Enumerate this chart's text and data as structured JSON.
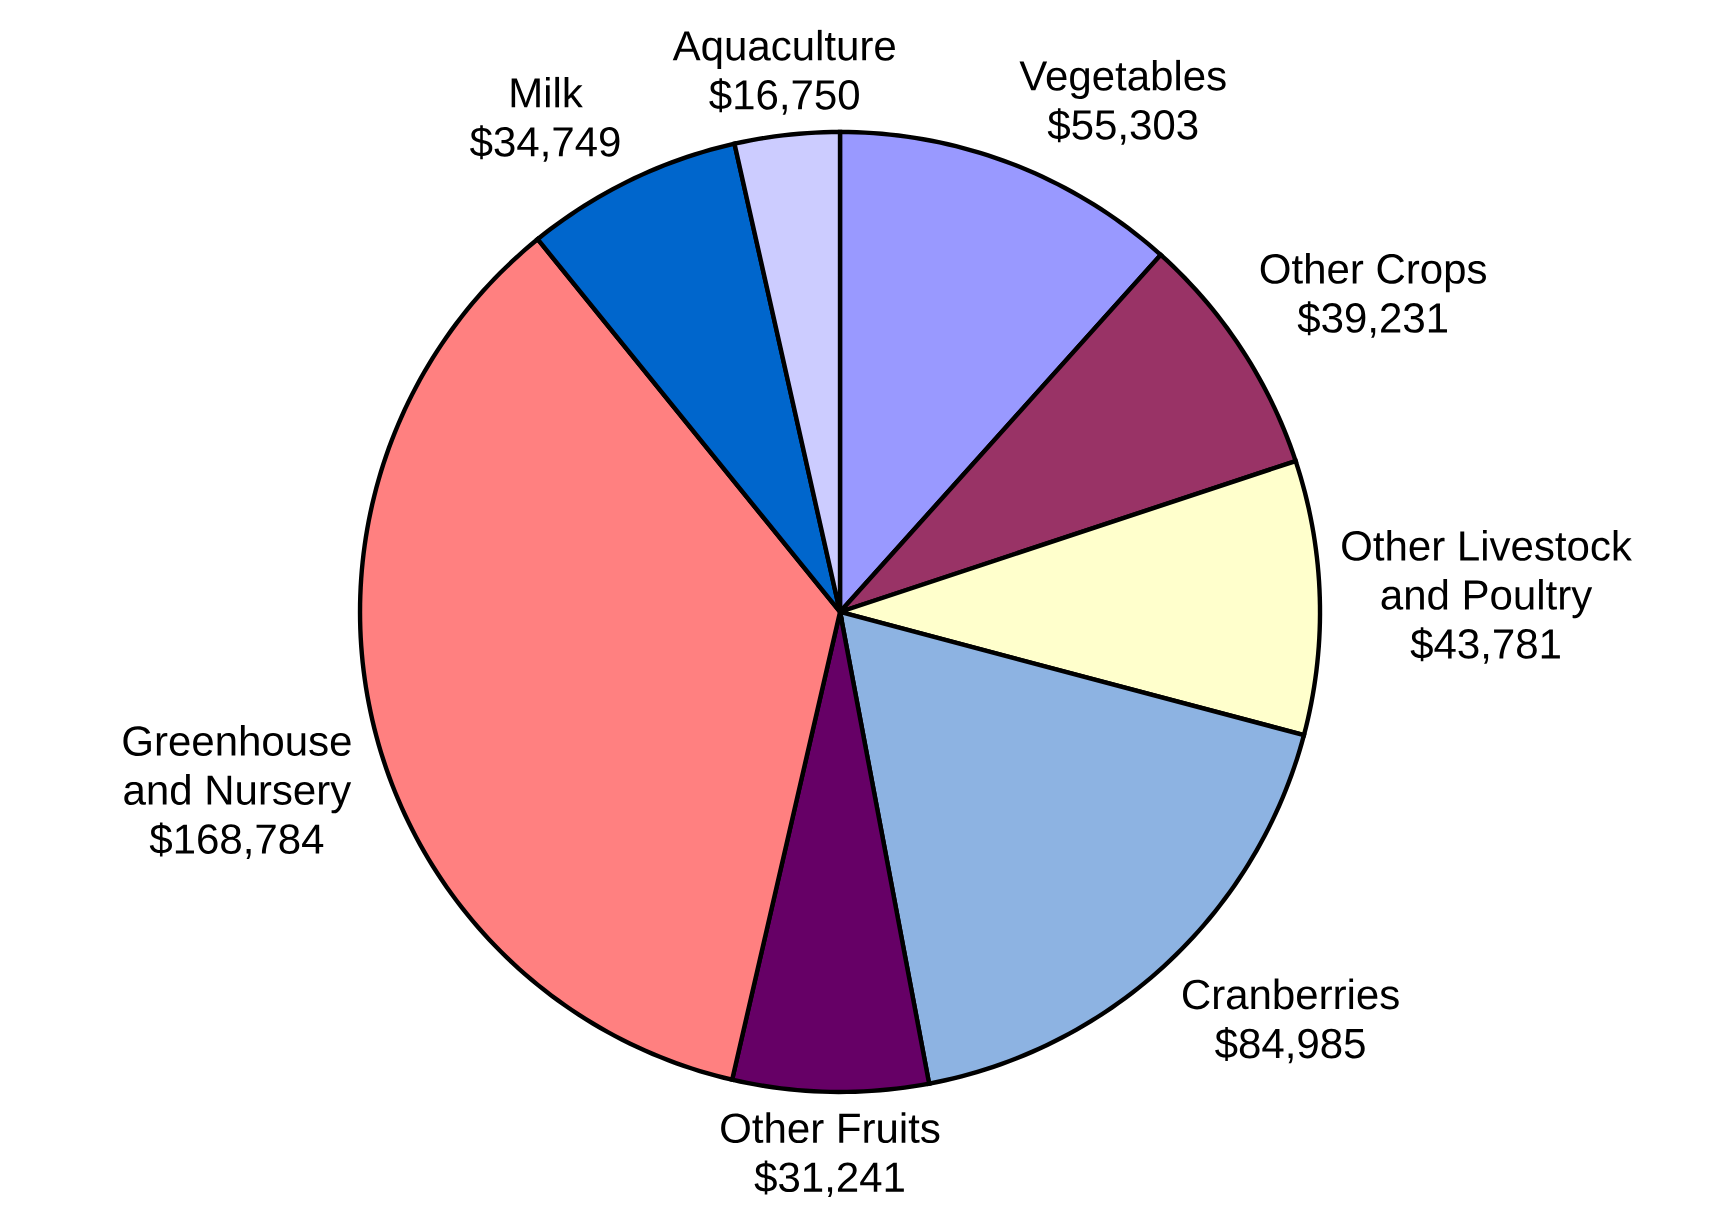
{
  "chart_data": {
    "type": "pie",
    "categories": [
      "Vegetables",
      "Other Crops",
      "Other Livestock and Poultry",
      "Cranberries",
      "Other Fruits",
      "Greenhouse and Nursery",
      "Milk",
      "Aquaculture"
    ],
    "values": [
      55303,
      39231,
      43781,
      84985,
      31241,
      168784,
      34749,
      16750
    ],
    "value_labels": [
      "$55,303",
      "$39,231",
      "$43,781",
      "$84,985",
      "$31,241",
      "$168,784",
      "$34,749",
      "$16,750"
    ],
    "colors": [
      "#9999ff",
      "#993366",
      "#ffffcc",
      "#8db3e2",
      "#660066",
      "#ff8080",
      "#0066cc",
      "#ccccff"
    ]
  }
}
